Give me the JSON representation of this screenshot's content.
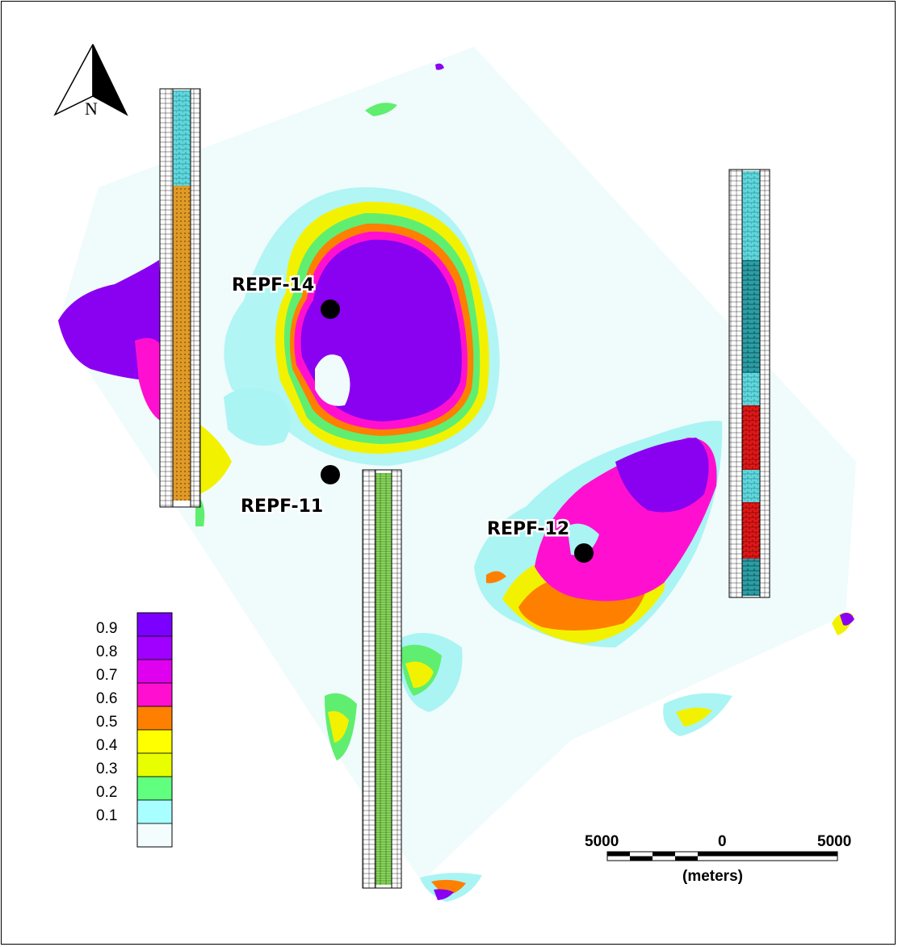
{
  "north_arrow": {
    "icon": "north-arrow-icon",
    "label": "N"
  },
  "wells": [
    {
      "id": "repf-14",
      "name": "REPF-14"
    },
    {
      "id": "repf-11",
      "name": "REPF-11"
    },
    {
      "id": "repf-12",
      "name": "REPF-12"
    }
  ],
  "legend": {
    "labels": [
      "0.9",
      "0.8",
      "0.7",
      "0.6",
      "0.5",
      "0.4",
      "0.3",
      "0.2",
      "0.1"
    ],
    "colors": [
      "#7b00ff",
      "#a000ff",
      "#e000f0",
      "#ff10d0",
      "#ff8000",
      "#ffff00",
      "#e8ff00",
      "#60ff80",
      "#a8ffff",
      "#f4fdfd"
    ]
  },
  "scale_bar": {
    "left_label": "5000",
    "center_label": "0",
    "right_label": "5000",
    "unit_label": "(meters)"
  },
  "colors": {
    "background_area": "#f0fbfb",
    "low": "#aaf4f4",
    "green": "#60ee70",
    "yellow": "#f2f200",
    "orange": "#ff8000",
    "magenta": "#ff10d0",
    "purple": "#8a00f0",
    "well_marker": "#000000",
    "log_orange": "#e09a28",
    "log_cyan": "#5fd8de",
    "log_green": "#8ee060",
    "log_red": "#e01818"
  }
}
